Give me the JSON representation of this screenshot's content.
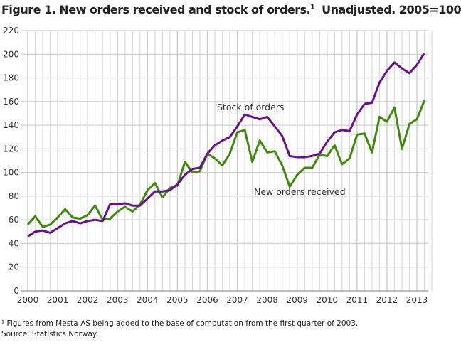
{
  "title": "Figure 1. New orders received and stock of orders.",
  "title_sup": "1",
  "title_suffix": "  Unadjusted. 2005=100",
  "footnote": "¹ Figures from Mesta AS being added to the base of computation from the first quarter of 2003.",
  "source": "Source: Statistics Norway.",
  "chart_data": {
    "type": "line",
    "xlabel": "",
    "ylabel": "",
    "ylim": [
      0,
      220
    ],
    "yticks": [
      0,
      20,
      40,
      60,
      80,
      100,
      120,
      140,
      160,
      180,
      200,
      220
    ],
    "xticks": [
      "2000",
      "2001",
      "2002",
      "2003",
      "2004",
      "2005",
      "2006",
      "2007",
      "2008",
      "2009",
      "2010",
      "2011",
      "2012",
      "2013"
    ],
    "x_start": "2000Q1",
    "frequency": "quarterly",
    "grid": true,
    "series": [
      {
        "name": "Stock of orders",
        "color": "#6a0f8e",
        "values": [
          46,
          50,
          51,
          49,
          53,
          57,
          59,
          57,
          59,
          60,
          59,
          73,
          73,
          74,
          72,
          72,
          78,
          84,
          84,
          85,
          90,
          98,
          103,
          104,
          116,
          123,
          127,
          130,
          139,
          149,
          147,
          145,
          147,
          139,
          131,
          114,
          113,
          113,
          114,
          116,
          126,
          134,
          136,
          135,
          149,
          158,
          159,
          176,
          186,
          193,
          188,
          184,
          191,
          201
        ]
      },
      {
        "name": "New orders received",
        "color": "#3f8a0a",
        "values": [
          56,
          63,
          54,
          56,
          62,
          69,
          62,
          61,
          64,
          72,
          60,
          61,
          67,
          71,
          67,
          73,
          85,
          91,
          79,
          87,
          89,
          109,
          100,
          101,
          116,
          112,
          106,
          116,
          134,
          136,
          109,
          127,
          117,
          118,
          106,
          88,
          98,
          104,
          104,
          115,
          114,
          123,
          107,
          112,
          132,
          133,
          117,
          147,
          143,
          155,
          120,
          141,
          145,
          161
        ]
      }
    ]
  }
}
